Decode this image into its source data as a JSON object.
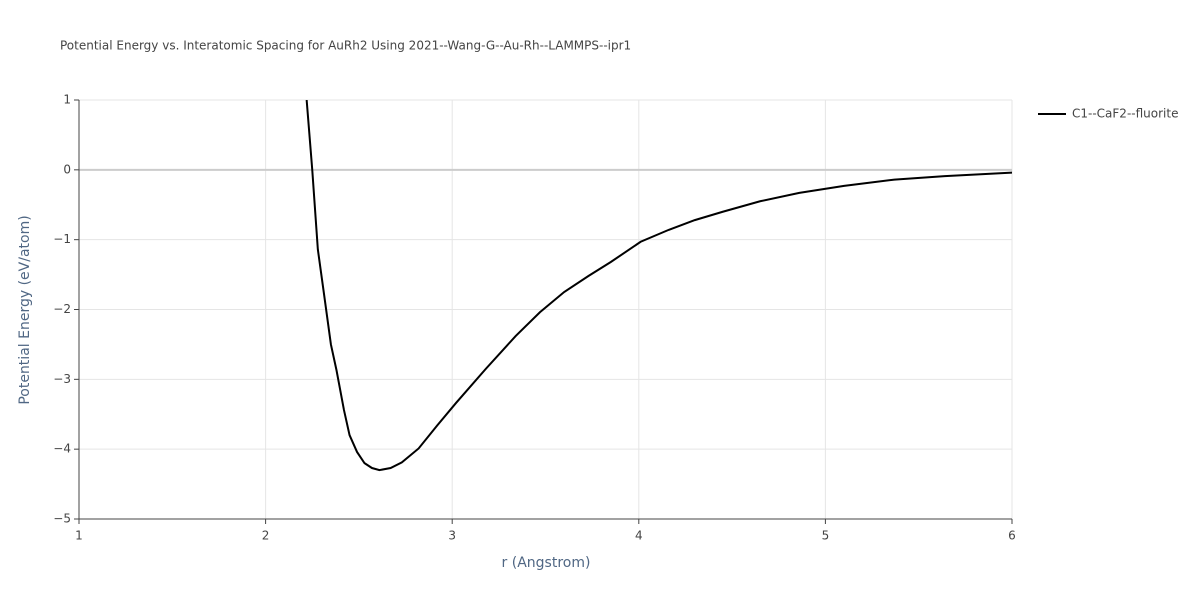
{
  "chart_data": {
    "type": "line",
    "title": "Potential Energy vs. Interatomic Spacing for AuRh2 Using 2021--Wang-G--Au-Rh--LAMMPS--ipr1",
    "x_label": "r (Angstrom)",
    "y_label": "Potential Energy (eV/atom)",
    "x": [
      2.22,
      2.25,
      2.28,
      2.31,
      2.35,
      2.38,
      2.42,
      2.45,
      2.49,
      2.53,
      2.57,
      2.61,
      2.67,
      2.73,
      2.82,
      2.92,
      3.02,
      3.18,
      3.34,
      3.47,
      3.6,
      3.73,
      3.85,
      4.01,
      4.16,
      4.3,
      4.45,
      4.65,
      4.86,
      5.1,
      5.37,
      5.64,
      6.0
    ],
    "series": [
      {
        "name": "C1--CaF2--fluorite",
        "color": "#000000",
        "values": [
          1,
          0,
          -1.14,
          -1.72,
          -2.5,
          -2.87,
          -3.44,
          -3.8,
          -4.04,
          -4.2,
          -4.27,
          -4.3,
          -4.27,
          -4.19,
          -3.99,
          -3.66,
          -3.34,
          -2.85,
          -2.38,
          -2.04,
          -1.75,
          -1.52,
          -1.32,
          -1.03,
          -0.86,
          -0.72,
          -0.6,
          -0.45,
          -0.33,
          -0.23,
          -0.14,
          -0.09,
          -0.04
        ]
      }
    ],
    "xlim": [
      1,
      6
    ],
    "xticks": [
      1,
      2,
      3,
      4,
      5,
      6
    ],
    "ylim": [
      -5,
      1
    ],
    "yticks": [
      {
        "value": -5,
        "label": "−5"
      },
      {
        "value": -4,
        "label": "−4"
      },
      {
        "value": -3,
        "label": "−3"
      },
      {
        "value": -2,
        "label": "−2"
      },
      {
        "value": -1,
        "label": "−1"
      },
      0,
      1
    ],
    "grid": true
  }
}
